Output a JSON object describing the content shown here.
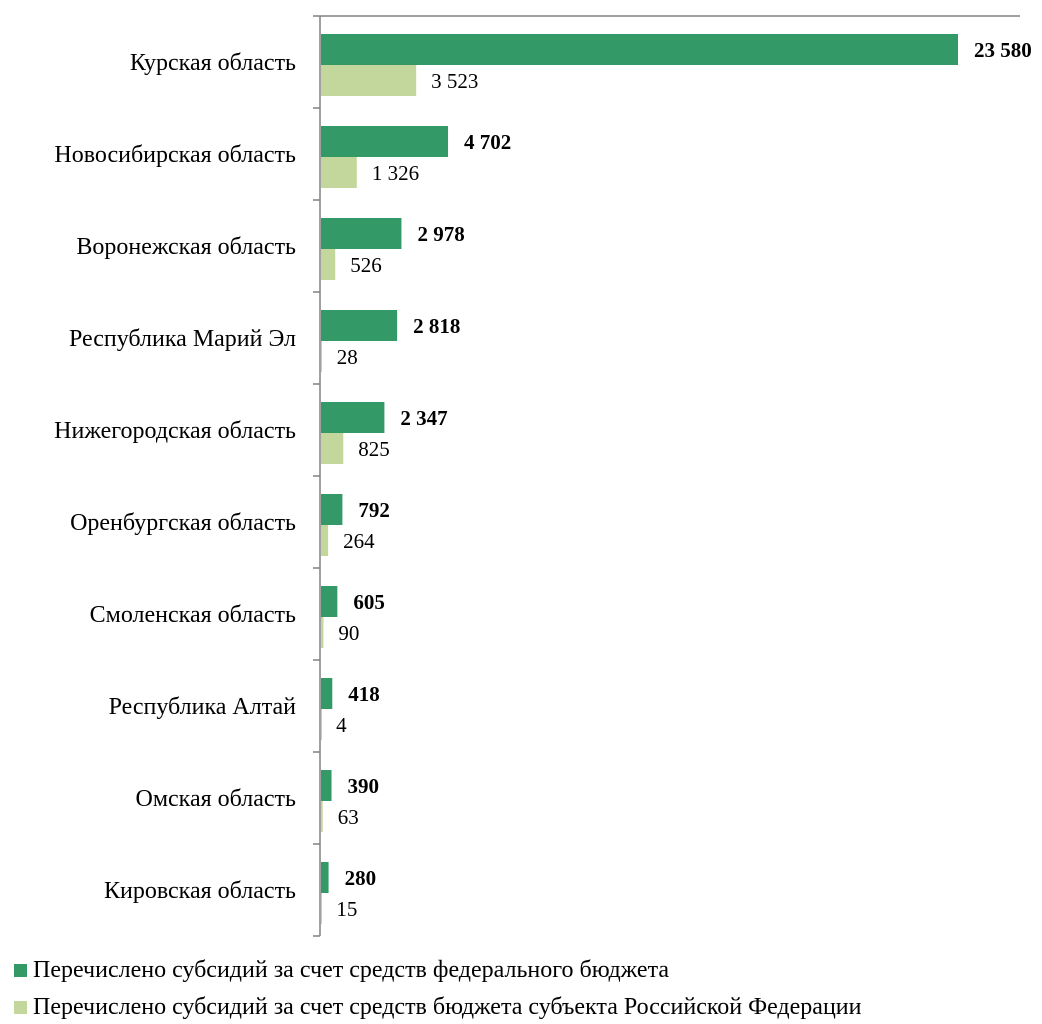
{
  "chart_data": {
    "type": "bar",
    "orientation": "horizontal",
    "categories": [
      "Курская область",
      "Новосибирская область",
      "Воронежская область",
      "Республика Марий Эл",
      "Нижегородская область",
      "Оренбургская область",
      "Смоленская область",
      "Республика Алтай",
      "Омская область",
      "Кировская область"
    ],
    "series": [
      {
        "name": "Перечислено субсидий за счет средств федерального бюджета",
        "values": [
          23580,
          4702,
          2978,
          2818,
          2347,
          792,
          605,
          418,
          390,
          280
        ],
        "labels": [
          "23 580",
          "4 702",
          "2 978",
          "2 818",
          "2 347",
          "792",
          "605",
          "418",
          "390",
          "280"
        ],
        "color": "#339966"
      },
      {
        "name": "Перечислено субсидий за счет средств бюджета субъекта Российской Федерации",
        "values": [
          3523,
          1326,
          526,
          28,
          825,
          264,
          90,
          4,
          63,
          15
        ],
        "labels": [
          "3 523",
          "1 326",
          "526",
          "28",
          "825",
          "264",
          "90",
          "4",
          "63",
          "15"
        ],
        "color": "#c3d69b"
      }
    ],
    "xlim": [
      0,
      23580
    ],
    "grid": false,
    "legend_position": "bottom"
  }
}
